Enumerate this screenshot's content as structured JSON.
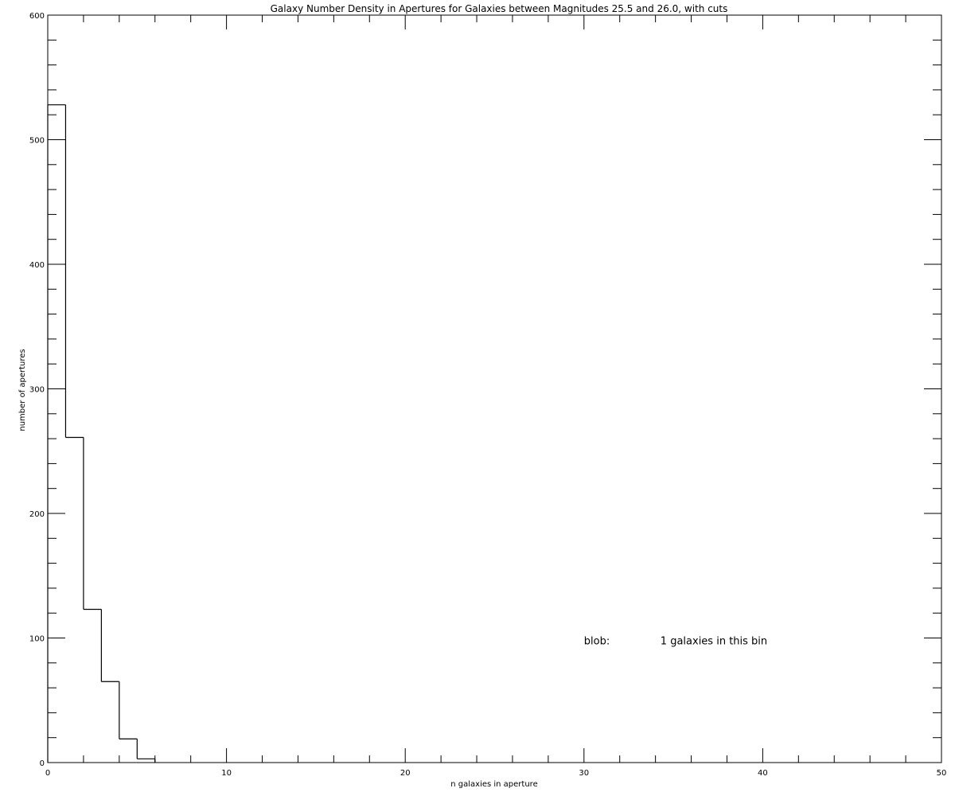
{
  "chart_data": {
    "type": "histogram",
    "title": "Galaxy Number Density in Apertures for Galaxies between Magnitudes 25.5 and 26.0, with cuts",
    "xlabel": "n galaxies in aperture",
    "ylabel": "number of apertures",
    "xlim": [
      0,
      50
    ],
    "ylim": [
      0,
      600
    ],
    "x_major_ticks": [
      0,
      10,
      20,
      30,
      40,
      50
    ],
    "x_minor_step": 2,
    "y_major_ticks": [
      0,
      100,
      200,
      300,
      400,
      500,
      600
    ],
    "y_minor_step": 20,
    "x_tick_labels": [
      "0",
      "10",
      "20",
      "30",
      "40",
      "50"
    ],
    "y_tick_labels": [
      "0",
      "100",
      "200",
      "300",
      "400",
      "500",
      "600"
    ],
    "bin_width": 1,
    "bins": [
      {
        "x": 0,
        "count": 528
      },
      {
        "x": 1,
        "count": 261
      },
      {
        "x": 2,
        "count": 123
      },
      {
        "x": 3,
        "count": 65
      },
      {
        "x": 4,
        "count": 19
      },
      {
        "x": 5,
        "count": 3
      }
    ],
    "grid": false,
    "annotation": {
      "label": "blob:",
      "text": "1 galaxies in this bin"
    },
    "annotation_anchor": {
      "x": 30,
      "y": 98
    }
  }
}
